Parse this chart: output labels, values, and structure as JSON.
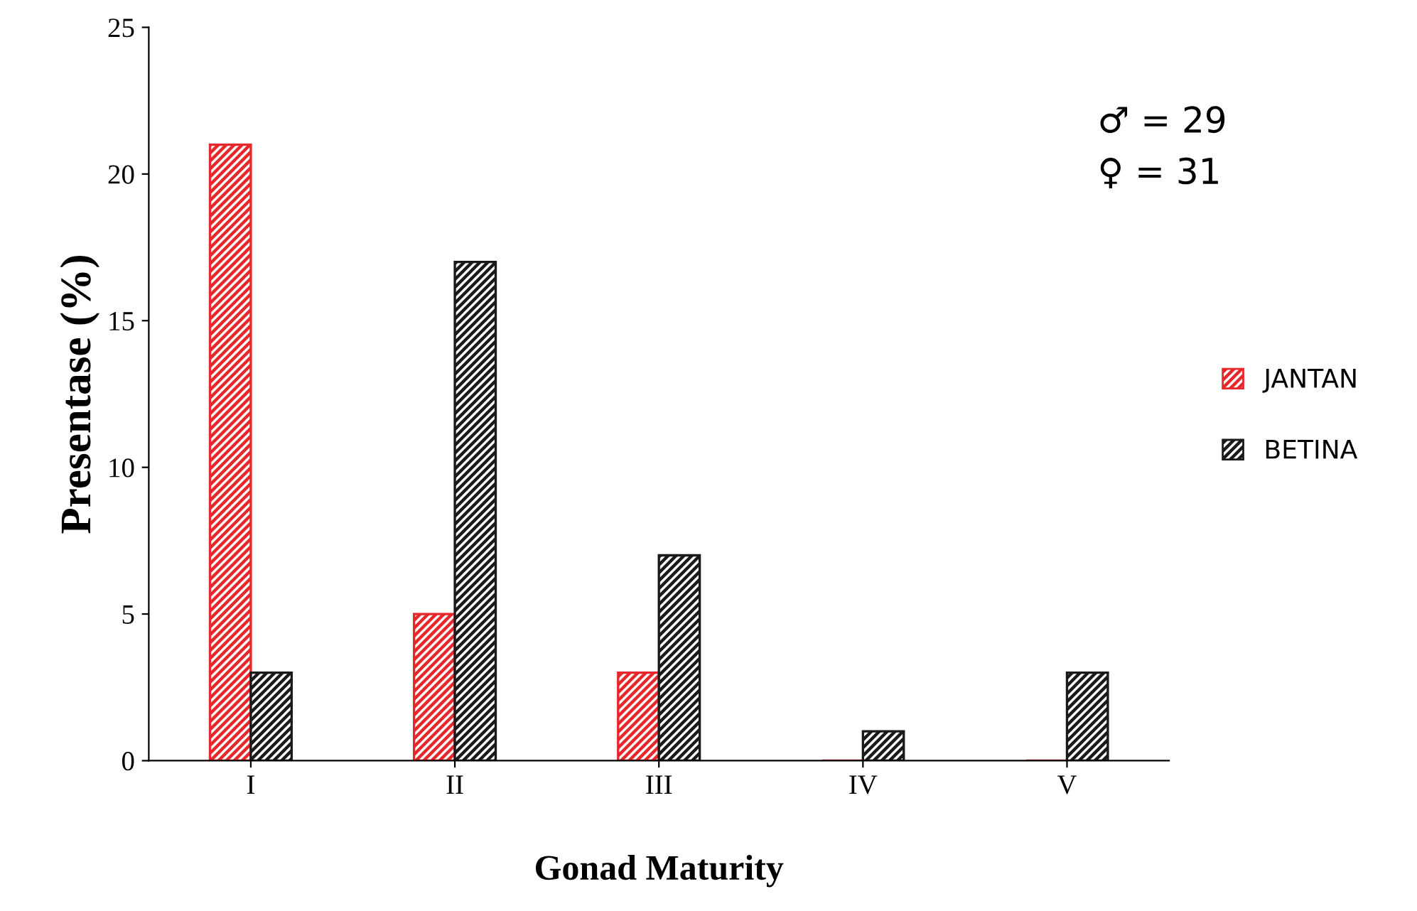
{
  "chart_data": {
    "type": "bar",
    "xlabel": "Gonad Maturity",
    "ylabel": "Presentase (%)",
    "categories": [
      "I",
      "II",
      "III",
      "IV",
      "V"
    ],
    "series": [
      {
        "name": "JANTAN",
        "color": "#e8272b",
        "values": [
          21,
          5,
          3,
          0,
          0
        ]
      },
      {
        "name": "BETINA",
        "color": "#1a1a1a",
        "values": [
          3,
          17,
          7,
          1,
          3
        ]
      }
    ],
    "ylim": [
      0,
      25
    ],
    "yticks": [
      0,
      5,
      10,
      15,
      20,
      25
    ],
    "grid": false,
    "legend": "right",
    "annotations": [
      "♂ = 29",
      "♀ = 31"
    ]
  }
}
